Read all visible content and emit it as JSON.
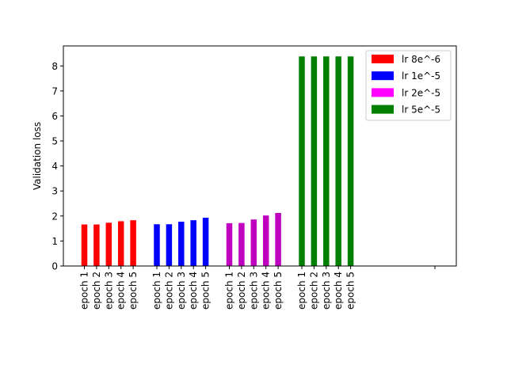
{
  "chart_data": {
    "type": "bar",
    "title": "",
    "xlabel": "",
    "ylabel": "Validation loss",
    "ylim": [
      0,
      8.8
    ],
    "yticks": [
      0,
      1,
      2,
      3,
      4,
      5,
      6,
      7,
      8
    ],
    "grid": false,
    "legend_position": "top-right",
    "categories": [
      "epoch 1",
      "epoch 2",
      "epoch 3",
      "epoch 4",
      "epoch 5"
    ],
    "series": [
      {
        "name": "lr 8e^-6",
        "color": "#ff0000",
        "values": [
          1.66,
          1.66,
          1.73,
          1.79,
          1.83
        ]
      },
      {
        "name": "lr 1e^-5",
        "color": "#0000ff",
        "values": [
          1.67,
          1.67,
          1.77,
          1.83,
          1.93
        ]
      },
      {
        "name": "lr 2e^-5",
        "color": "#bf00bf",
        "legend_color": "#ff00ff",
        "values": [
          1.71,
          1.72,
          1.86,
          2.02,
          2.12
        ]
      },
      {
        "name": "lr 5e^-5",
        "color": "#008000",
        "values": [
          8.38,
          8.38,
          8.38,
          8.38,
          8.38
        ]
      }
    ]
  }
}
